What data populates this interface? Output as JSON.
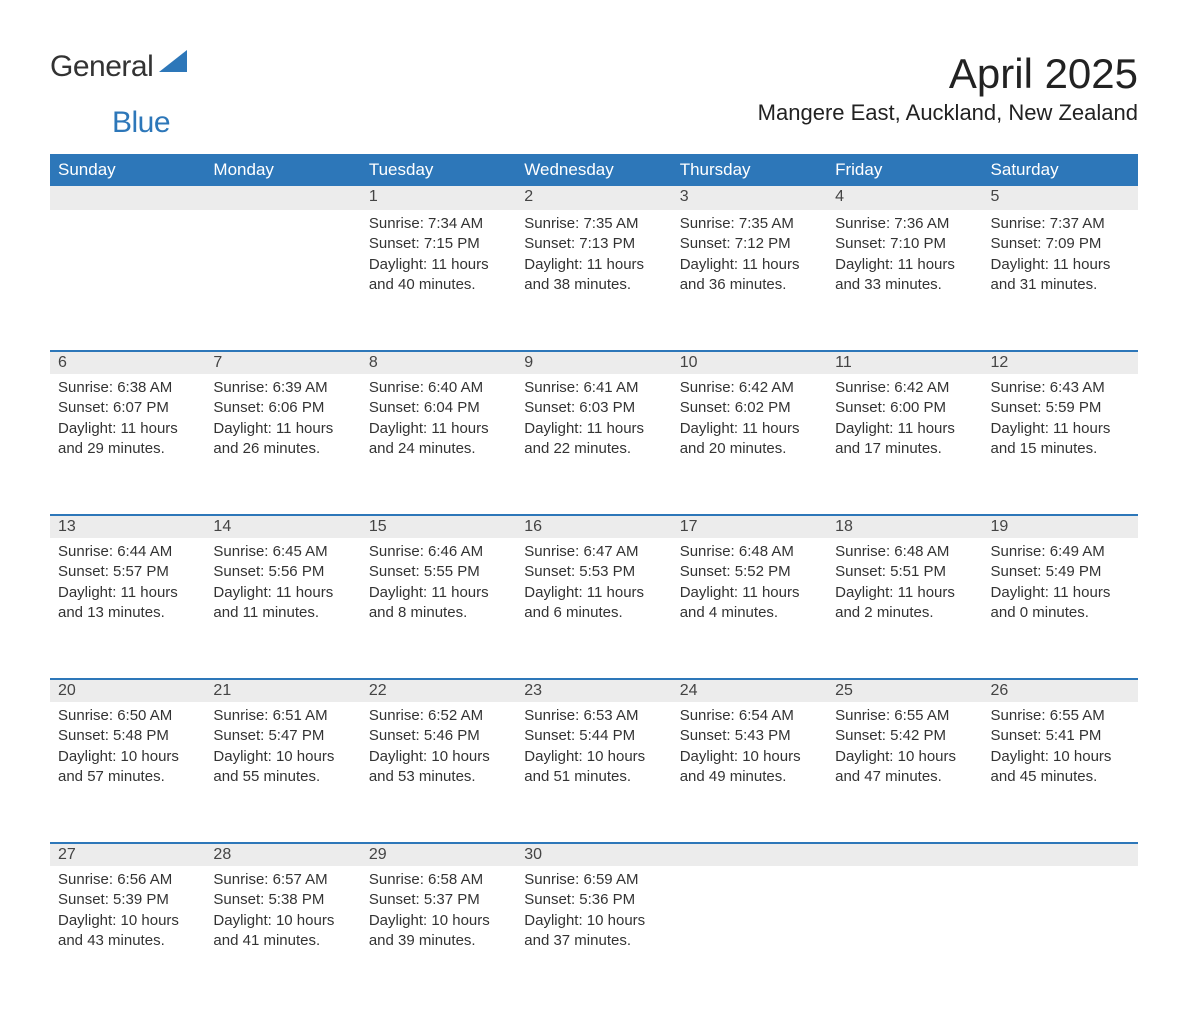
{
  "logo": {
    "word1": "General",
    "word2": "Blue",
    "accent_color": "#2d77b9"
  },
  "title": "April 2025",
  "location": "Mangere East, Auckland, New Zealand",
  "colors": {
    "header_bg": "#2d77b9",
    "header_text": "#ffffff",
    "daynum_bg": "#ececec",
    "row_divider": "#2d77b9",
    "body_text": "#333333",
    "page_bg": "#ffffff"
  },
  "typography": {
    "title_fontsize": 42,
    "location_fontsize": 22,
    "weekday_fontsize": 17,
    "daynum_fontsize": 16,
    "body_fontsize": 15,
    "font_family": "Arial"
  },
  "weekdays": [
    "Sunday",
    "Monday",
    "Tuesday",
    "Wednesday",
    "Thursday",
    "Friday",
    "Saturday"
  ],
  "weeks": [
    [
      null,
      null,
      {
        "n": "1",
        "sunrise": "Sunrise: 7:34 AM",
        "sunset": "Sunset: 7:15 PM",
        "day1": "Daylight: 11 hours",
        "day2": "and 40 minutes."
      },
      {
        "n": "2",
        "sunrise": "Sunrise: 7:35 AM",
        "sunset": "Sunset: 7:13 PM",
        "day1": "Daylight: 11 hours",
        "day2": "and 38 minutes."
      },
      {
        "n": "3",
        "sunrise": "Sunrise: 7:35 AM",
        "sunset": "Sunset: 7:12 PM",
        "day1": "Daylight: 11 hours",
        "day2": "and 36 minutes."
      },
      {
        "n": "4",
        "sunrise": "Sunrise: 7:36 AM",
        "sunset": "Sunset: 7:10 PM",
        "day1": "Daylight: 11 hours",
        "day2": "and 33 minutes."
      },
      {
        "n": "5",
        "sunrise": "Sunrise: 7:37 AM",
        "sunset": "Sunset: 7:09 PM",
        "day1": "Daylight: 11 hours",
        "day2": "and 31 minutes."
      }
    ],
    [
      {
        "n": "6",
        "sunrise": "Sunrise: 6:38 AM",
        "sunset": "Sunset: 6:07 PM",
        "day1": "Daylight: 11 hours",
        "day2": "and 29 minutes."
      },
      {
        "n": "7",
        "sunrise": "Sunrise: 6:39 AM",
        "sunset": "Sunset: 6:06 PM",
        "day1": "Daylight: 11 hours",
        "day2": "and 26 minutes."
      },
      {
        "n": "8",
        "sunrise": "Sunrise: 6:40 AM",
        "sunset": "Sunset: 6:04 PM",
        "day1": "Daylight: 11 hours",
        "day2": "and 24 minutes."
      },
      {
        "n": "9",
        "sunrise": "Sunrise: 6:41 AM",
        "sunset": "Sunset: 6:03 PM",
        "day1": "Daylight: 11 hours",
        "day2": "and 22 minutes."
      },
      {
        "n": "10",
        "sunrise": "Sunrise: 6:42 AM",
        "sunset": "Sunset: 6:02 PM",
        "day1": "Daylight: 11 hours",
        "day2": "and 20 minutes."
      },
      {
        "n": "11",
        "sunrise": "Sunrise: 6:42 AM",
        "sunset": "Sunset: 6:00 PM",
        "day1": "Daylight: 11 hours",
        "day2": "and 17 minutes."
      },
      {
        "n": "12",
        "sunrise": "Sunrise: 6:43 AM",
        "sunset": "Sunset: 5:59 PM",
        "day1": "Daylight: 11 hours",
        "day2": "and 15 minutes."
      }
    ],
    [
      {
        "n": "13",
        "sunrise": "Sunrise: 6:44 AM",
        "sunset": "Sunset: 5:57 PM",
        "day1": "Daylight: 11 hours",
        "day2": "and 13 minutes."
      },
      {
        "n": "14",
        "sunrise": "Sunrise: 6:45 AM",
        "sunset": "Sunset: 5:56 PM",
        "day1": "Daylight: 11 hours",
        "day2": "and 11 minutes."
      },
      {
        "n": "15",
        "sunrise": "Sunrise: 6:46 AM",
        "sunset": "Sunset: 5:55 PM",
        "day1": "Daylight: 11 hours",
        "day2": "and 8 minutes."
      },
      {
        "n": "16",
        "sunrise": "Sunrise: 6:47 AM",
        "sunset": "Sunset: 5:53 PM",
        "day1": "Daylight: 11 hours",
        "day2": "and 6 minutes."
      },
      {
        "n": "17",
        "sunrise": "Sunrise: 6:48 AM",
        "sunset": "Sunset: 5:52 PM",
        "day1": "Daylight: 11 hours",
        "day2": "and 4 minutes."
      },
      {
        "n": "18",
        "sunrise": "Sunrise: 6:48 AM",
        "sunset": "Sunset: 5:51 PM",
        "day1": "Daylight: 11 hours",
        "day2": "and 2 minutes."
      },
      {
        "n": "19",
        "sunrise": "Sunrise: 6:49 AM",
        "sunset": "Sunset: 5:49 PM",
        "day1": "Daylight: 11 hours",
        "day2": "and 0 minutes."
      }
    ],
    [
      {
        "n": "20",
        "sunrise": "Sunrise: 6:50 AM",
        "sunset": "Sunset: 5:48 PM",
        "day1": "Daylight: 10 hours",
        "day2": "and 57 minutes."
      },
      {
        "n": "21",
        "sunrise": "Sunrise: 6:51 AM",
        "sunset": "Sunset: 5:47 PM",
        "day1": "Daylight: 10 hours",
        "day2": "and 55 minutes."
      },
      {
        "n": "22",
        "sunrise": "Sunrise: 6:52 AM",
        "sunset": "Sunset: 5:46 PM",
        "day1": "Daylight: 10 hours",
        "day2": "and 53 minutes."
      },
      {
        "n": "23",
        "sunrise": "Sunrise: 6:53 AM",
        "sunset": "Sunset: 5:44 PM",
        "day1": "Daylight: 10 hours",
        "day2": "and 51 minutes."
      },
      {
        "n": "24",
        "sunrise": "Sunrise: 6:54 AM",
        "sunset": "Sunset: 5:43 PM",
        "day1": "Daylight: 10 hours",
        "day2": "and 49 minutes."
      },
      {
        "n": "25",
        "sunrise": "Sunrise: 6:55 AM",
        "sunset": "Sunset: 5:42 PM",
        "day1": "Daylight: 10 hours",
        "day2": "and 47 minutes."
      },
      {
        "n": "26",
        "sunrise": "Sunrise: 6:55 AM",
        "sunset": "Sunset: 5:41 PM",
        "day1": "Daylight: 10 hours",
        "day2": "and 45 minutes."
      }
    ],
    [
      {
        "n": "27",
        "sunrise": "Sunrise: 6:56 AM",
        "sunset": "Sunset: 5:39 PM",
        "day1": "Daylight: 10 hours",
        "day2": "and 43 minutes."
      },
      {
        "n": "28",
        "sunrise": "Sunrise: 6:57 AM",
        "sunset": "Sunset: 5:38 PM",
        "day1": "Daylight: 10 hours",
        "day2": "and 41 minutes."
      },
      {
        "n": "29",
        "sunrise": "Sunrise: 6:58 AM",
        "sunset": "Sunset: 5:37 PM",
        "day1": "Daylight: 10 hours",
        "day2": "and 39 minutes."
      },
      {
        "n": "30",
        "sunrise": "Sunrise: 6:59 AM",
        "sunset": "Sunset: 5:36 PM",
        "day1": "Daylight: 10 hours",
        "day2": "and 37 minutes."
      },
      null,
      null,
      null
    ]
  ]
}
